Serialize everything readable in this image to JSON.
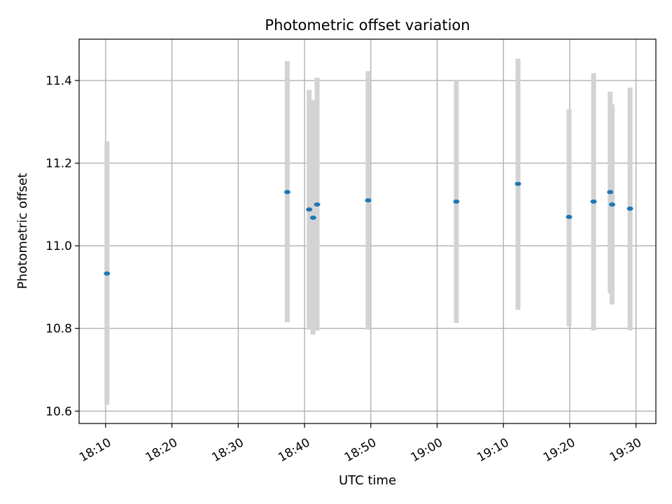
{
  "chart_data": {
    "type": "scatter",
    "title": "Photometric offset variation",
    "xlabel": "UTC time",
    "ylabel": "Photometric offset",
    "x_unit": "minutes",
    "xlim": [
      "18:06",
      "19:33"
    ],
    "ylim": [
      10.57,
      11.5
    ],
    "x_ticks": [
      "18:10",
      "18:20",
      "18:30",
      "18:40",
      "18:50",
      "19:00",
      "19:10",
      "19:20",
      "19:30"
    ],
    "y_ticks": [
      "10.6",
      "10.8",
      "11.0",
      "11.2",
      "11.4"
    ],
    "grid": true,
    "marker_color": "#1f77b4",
    "errorbar_color": "#d3d3d3",
    "points": [
      {
        "time": "18:10:12",
        "y": 10.933,
        "low": 10.615,
        "high": 11.253
      },
      {
        "time": "18:37:24",
        "y": 11.13,
        "low": 10.815,
        "high": 11.447
      },
      {
        "time": "18:40:42",
        "y": 11.088,
        "low": 10.797,
        "high": 11.377
      },
      {
        "time": "18:41:18",
        "y": 11.068,
        "low": 10.785,
        "high": 11.353
      },
      {
        "time": "18:41:54",
        "y": 11.1,
        "low": 10.795,
        "high": 11.407
      },
      {
        "time": "18:49:36",
        "y": 11.11,
        "low": 10.797,
        "high": 11.423
      },
      {
        "time": "19:02:54",
        "y": 11.107,
        "low": 10.813,
        "high": 11.4
      },
      {
        "time": "19:12:12",
        "y": 11.15,
        "low": 10.845,
        "high": 11.453
      },
      {
        "time": "19:19:54",
        "y": 11.07,
        "low": 10.805,
        "high": 11.33
      },
      {
        "time": "19:23:36",
        "y": 11.107,
        "low": 10.795,
        "high": 11.418
      },
      {
        "time": "19:26:06",
        "y": 11.13,
        "low": 10.885,
        "high": 11.373
      },
      {
        "time": "19:26:24",
        "y": 11.1,
        "low": 10.858,
        "high": 11.342
      },
      {
        "time": "19:29:06",
        "y": 11.09,
        "low": 10.795,
        "high": 11.383
      }
    ]
  }
}
